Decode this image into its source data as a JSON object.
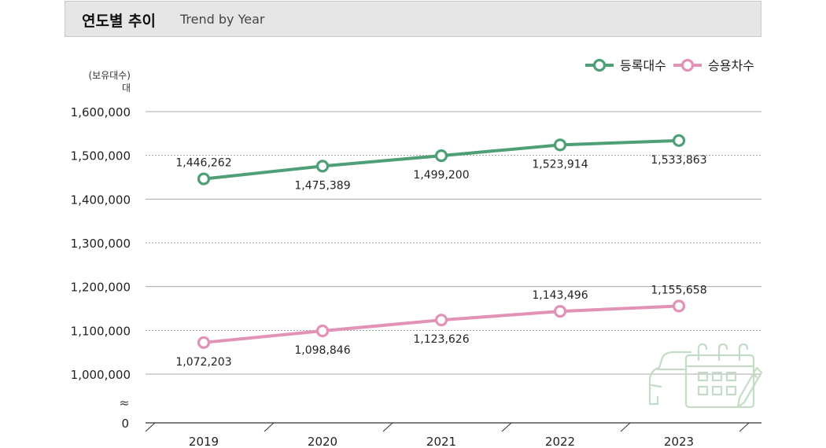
{
  "header": {
    "title": "연도별 추이",
    "subtitle": "Trend by Year"
  },
  "colors": {
    "registered": "#4e9e76",
    "passenger": "#e292b7",
    "grid": "#9a9a9a",
    "icon": "#c4dcc6"
  },
  "icon": {
    "name": "car-calendar-icon"
  },
  "chart_data": {
    "type": "line",
    "title": "연도별 추이",
    "subtitle": "Trend by Year",
    "ylabel": "(보유대수) 대",
    "ylabel_unit_line1": "(보유대수)",
    "ylabel_unit_line2": "대",
    "categories": [
      "2019",
      "2020",
      "2021",
      "2022",
      "2023"
    ],
    "y_ticks": [
      1000000,
      1100000,
      1200000,
      1300000,
      1400000,
      1500000,
      1600000
    ],
    "y_tick_labels": [
      "1,000,000",
      "1,100,000",
      "1,200,000",
      "1,300,000",
      "1,400,000",
      "1,500,000",
      "1,600,000"
    ],
    "y_zero_label": "0",
    "axis_break_symbol": "≈",
    "ylim": [
      1000000,
      1600000
    ],
    "legend_position": "top-right",
    "series": [
      {
        "name": "등록대수",
        "color": "#4e9e76",
        "values": [
          1446262,
          1475389,
          1499200,
          1523914,
          1533863
        ],
        "value_labels": [
          "1,446,262",
          "1,475,389",
          "1,499,200",
          "1,523,914",
          "1,533,863"
        ],
        "label_positions": [
          "above",
          "below",
          "below",
          "below",
          "below"
        ]
      },
      {
        "name": "승용차수",
        "color": "#e292b7",
        "values": [
          1072203,
          1098846,
          1123626,
          1143496,
          1155658
        ],
        "value_labels": [
          "1,072,203",
          "1,098,846",
          "1,123,626",
          "1,143,496",
          "1,155,658"
        ],
        "label_positions": [
          "below",
          "below",
          "below",
          "above",
          "above"
        ]
      }
    ]
  }
}
